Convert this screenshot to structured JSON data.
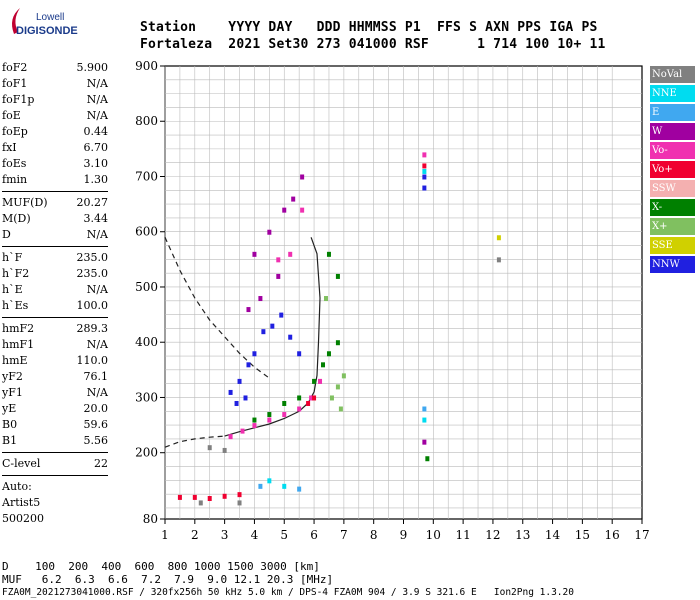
{
  "logo": {
    "line1": "Lowell",
    "line2": "DIGISONDE"
  },
  "header": {
    "row1": "Station    YYYY DAY   DDD HHMMSS P1  FFS S AXN PPS IGA PS",
    "row2": "Fortaleza  2021 Set30 273 041000 RSF      1 714 100 10+ 11"
  },
  "params": {
    "group1": [
      {
        "name": "foF2",
        "value": "5.900"
      },
      {
        "name": "foF1",
        "value": "N/A"
      },
      {
        "name": "foF1p",
        "value": "N/A"
      },
      {
        "name": "foE",
        "value": "N/A"
      },
      {
        "name": "foEp",
        "value": "0.44"
      },
      {
        "name": "fxI",
        "value": "6.70"
      },
      {
        "name": "foEs",
        "value": "3.10"
      },
      {
        "name": "fmin",
        "value": "1.30"
      }
    ],
    "group2": [
      {
        "name": "MUF(D)",
        "value": "20.27"
      },
      {
        "name": "M(D)",
        "value": "3.44"
      },
      {
        "name": "D",
        "value": "N/A"
      }
    ],
    "group3": [
      {
        "name": "h`F",
        "value": "235.0"
      },
      {
        "name": "h`F2",
        "value": "235.0"
      },
      {
        "name": "h`E",
        "value": "N/A"
      },
      {
        "name": "h`Es",
        "value": "100.0"
      }
    ],
    "group4": [
      {
        "name": "hmF2",
        "value": "289.3"
      },
      {
        "name": "hmF1",
        "value": "N/A"
      },
      {
        "name": "hmE",
        "value": "110.0"
      },
      {
        "name": "yF2",
        "value": "76.1"
      },
      {
        "name": "yF1",
        "value": "N/A"
      },
      {
        "name": "yE",
        "value": "20.0"
      },
      {
        "name": "B0",
        "value": "59.6"
      },
      {
        "name": "B1",
        "value": "5.56"
      }
    ],
    "group5": [
      {
        "name": "C-level",
        "value": "22"
      }
    ],
    "auto": [
      "Auto:",
      "Artist5",
      "500200"
    ]
  },
  "legend": [
    {
      "label": "NoVal",
      "color": "#808080"
    },
    {
      "label": "NNE",
      "color": "#00dcf0"
    },
    {
      "label": "E",
      "color": "#40a8f0"
    },
    {
      "label": "W",
      "color": "#a000a0"
    },
    {
      "label": "Vo-",
      "color": "#f030b0"
    },
    {
      "label": "Vo+",
      "color": "#f00030"
    },
    {
      "label": "SSW",
      "color": "#f4b0b0"
    },
    {
      "label": "X-",
      "color": "#008000"
    },
    {
      "label": "X+",
      "color": "#80c060"
    },
    {
      "label": "SSE",
      "color": "#d0d000"
    },
    {
      "label": "NNW",
      "color": "#2020e0"
    }
  ],
  "footer": {
    "d_row": "D    100  200  400  600  800 1000 1500 3000 [km]",
    "muf_row": "MUF   6.2  6.3  6.6  7.2  7.9  9.0 12.1 20.3 [MHz]",
    "file_row": "FZA0M_2021273041000.RSF / 320fx256h 50 kHz 5.0 km / DPS-4 FZA0M 904 / 3.9 S 321.6 E   Ion2Png 1.3.20"
  },
  "chart_data": {
    "type": "scatter",
    "title": "",
    "xlabel": "",
    "ylabel": "",
    "xlim": [
      1,
      17
    ],
    "ylim": [
      80,
      900
    ],
    "x_ticks": [
      "1",
      "2",
      "3",
      "4",
      "5",
      "6",
      "7",
      "8",
      "9",
      "10",
      "11",
      "12",
      "13",
      "14",
      "15",
      "16",
      "17"
    ],
    "y_ticks": [
      "80",
      "200",
      "300",
      "400",
      "500",
      "600",
      "700",
      "800",
      "900"
    ],
    "grid": true,
    "series": [
      {
        "name": "NNW",
        "color": "#2020e0",
        "points": [
          [
            3.2,
            310
          ],
          [
            3.5,
            330
          ],
          [
            3.8,
            360
          ],
          [
            4.0,
            380
          ],
          [
            4.3,
            420
          ],
          [
            4.6,
            430
          ],
          [
            4.9,
            450
          ],
          [
            5.2,
            410
          ],
          [
            5.5,
            380
          ],
          [
            3.4,
            290
          ],
          [
            3.7,
            300
          ],
          [
            9.7,
            680
          ],
          [
            9.7,
            700
          ]
        ]
      },
      {
        "name": "W",
        "color": "#a000a0",
        "points": [
          [
            4.0,
            560
          ],
          [
            4.5,
            600
          ],
          [
            5.0,
            640
          ],
          [
            5.3,
            660
          ],
          [
            5.6,
            700
          ],
          [
            4.2,
            480
          ],
          [
            4.8,
            520
          ],
          [
            3.8,
            460
          ],
          [
            9.7,
            220
          ]
        ]
      },
      {
        "name": "Vo-",
        "color": "#f030b0",
        "points": [
          [
            3.2,
            230
          ],
          [
            3.6,
            240
          ],
          [
            4.0,
            250
          ],
          [
            4.5,
            260
          ],
          [
            5.0,
            270
          ],
          [
            5.5,
            280
          ],
          [
            5.9,
            300
          ],
          [
            6.2,
            330
          ],
          [
            4.8,
            550
          ],
          [
            5.2,
            560
          ],
          [
            5.6,
            640
          ],
          [
            9.7,
            740
          ]
        ]
      },
      {
        "name": "Vo+",
        "color": "#f00030",
        "points": [
          [
            1.5,
            120
          ],
          [
            2.0,
            120
          ],
          [
            2.5,
            118
          ],
          [
            3.0,
            122
          ],
          [
            3.5,
            125
          ],
          [
            5.8,
            290
          ],
          [
            6.0,
            300
          ],
          [
            9.7,
            720
          ]
        ]
      },
      {
        "name": "X-",
        "color": "#008000",
        "points": [
          [
            4.0,
            260
          ],
          [
            4.5,
            270
          ],
          [
            5.0,
            290
          ],
          [
            5.5,
            300
          ],
          [
            6.0,
            330
          ],
          [
            6.3,
            360
          ],
          [
            6.5,
            380
          ],
          [
            6.8,
            400
          ],
          [
            6.8,
            520
          ],
          [
            6.5,
            560
          ],
          [
            9.8,
            190
          ]
        ]
      },
      {
        "name": "X+",
        "color": "#80c060",
        "points": [
          [
            6.6,
            300
          ],
          [
            6.8,
            320
          ],
          [
            7.0,
            340
          ],
          [
            6.9,
            280
          ],
          [
            6.4,
            480
          ]
        ]
      },
      {
        "name": "NNE",
        "color": "#00dcf0",
        "points": [
          [
            4.5,
            150
          ],
          [
            5.0,
            140
          ],
          [
            9.7,
            260
          ],
          [
            9.7,
            710
          ]
        ]
      },
      {
        "name": "E",
        "color": "#40a8f0",
        "points": [
          [
            4.2,
            140
          ],
          [
            5.5,
            135
          ],
          [
            9.7,
            280
          ]
        ]
      },
      {
        "name": "SSE",
        "color": "#d0d000",
        "points": [
          [
            12.2,
            590
          ]
        ]
      },
      {
        "name": "NoVal",
        "color": "#808080",
        "points": [
          [
            2.5,
            210
          ],
          [
            3.0,
            205
          ],
          [
            2.2,
            110
          ],
          [
            3.5,
            110
          ],
          [
            12.2,
            550
          ]
        ]
      }
    ],
    "curves": [
      {
        "name": "virtual-height-trace",
        "style": "dashed",
        "points": [
          [
            1.0,
            590
          ],
          [
            1.5,
            530
          ],
          [
            2.0,
            480
          ],
          [
            2.5,
            440
          ],
          [
            3.0,
            410
          ],
          [
            3.5,
            380
          ],
          [
            4.0,
            355
          ],
          [
            4.5,
            335
          ]
        ]
      },
      {
        "name": "low-trace",
        "style": "dashed",
        "points": [
          [
            1.0,
            210
          ],
          [
            1.5,
            220
          ],
          [
            2.0,
            225
          ],
          [
            2.5,
            228
          ],
          [
            3.0,
            230
          ]
        ]
      },
      {
        "name": "profile-trace",
        "style": "solid",
        "points": [
          [
            3.0,
            230
          ],
          [
            3.5,
            238
          ],
          [
            4.0,
            245
          ],
          [
            4.5,
            252
          ],
          [
            5.0,
            262
          ],
          [
            5.5,
            275
          ],
          [
            5.8,
            290
          ],
          [
            6.0,
            310
          ],
          [
            6.1,
            340
          ],
          [
            6.15,
            400
          ],
          [
            6.2,
            480
          ],
          [
            6.1,
            560
          ],
          [
            5.9,
            590
          ]
        ]
      }
    ]
  }
}
